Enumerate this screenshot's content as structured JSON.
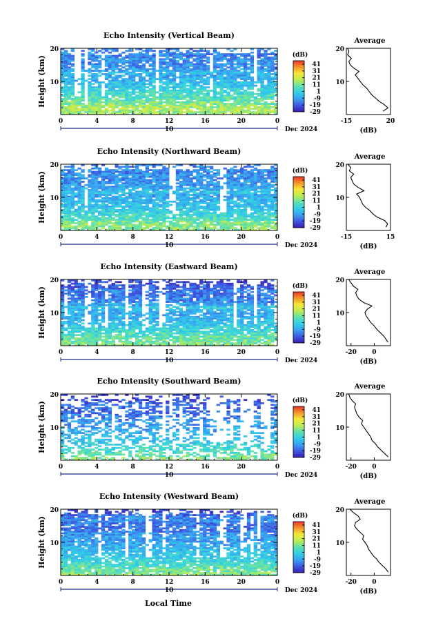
{
  "chart_data": [
    {
      "type": "heatmap",
      "title": "Echo Intensity (Vertical Beam)",
      "xlabel": "Local Time",
      "ylabel": "Height (km)",
      "x_ticks": [
        "0",
        "4",
        "8",
        "12",
        "16",
        "20",
        "0"
      ],
      "date_ticks": [
        "10"
      ],
      "date_label": "Dec 2024",
      "y_ticks": [
        "20",
        "10"
      ],
      "colorbar": {
        "unit": "(dB)",
        "ticks": [
          "41",
          "31",
          "21",
          "11",
          "1",
          "-9",
          "-19",
          "-29"
        ],
        "range": [
          -29,
          46
        ]
      },
      "profile": {
        "title": "Average",
        "xlabel": "(dB)",
        "x_ticks": [
          "-15",
          "20"
        ],
        "xlim": [
          -15,
          20
        ],
        "y_ticks": [
          "20",
          "10"
        ],
        "height": [
          1,
          2,
          3,
          4,
          5,
          6,
          7,
          8,
          9,
          10,
          11,
          12,
          13,
          14,
          15,
          16,
          17,
          18,
          19,
          20
        ],
        "value": [
          14,
          18,
          15,
          11,
          8,
          5,
          3,
          1,
          -2,
          -4,
          -6,
          -8,
          -5,
          -9,
          -12,
          -13,
          -11,
          -14,
          -13,
          -14
        ]
      }
    },
    {
      "type": "heatmap",
      "title": "Echo Intensity (Northward Beam)",
      "xlabel": "Local Time",
      "ylabel": "Height (km)",
      "x_ticks": [
        "0",
        "4",
        "8",
        "12",
        "16",
        "20",
        "0"
      ],
      "date_ticks": [
        "10"
      ],
      "date_label": "Dec 2024",
      "y_ticks": [
        "20",
        "10"
      ],
      "colorbar": {
        "unit": "(dB)",
        "ticks": [
          "41",
          "31",
          "21",
          "11",
          "1",
          "-9",
          "-19",
          "-29"
        ],
        "range": [
          -29,
          46
        ]
      },
      "profile": {
        "title": "Average",
        "xlabel": "(dB)",
        "x_ticks": [
          "-15",
          "15"
        ],
        "xlim": [
          -15,
          15
        ],
        "y_ticks": [
          "20",
          "10"
        ],
        "height": [
          1,
          2,
          3,
          4,
          5,
          6,
          7,
          8,
          9,
          10,
          11,
          12,
          13,
          14,
          15,
          16,
          17,
          18,
          19,
          20
        ],
        "value": [
          12,
          13,
          11,
          6,
          3,
          1,
          -2,
          -4,
          -5,
          -6,
          -8,
          -3,
          -7,
          -10,
          -11,
          -12,
          -10,
          -13,
          -12,
          -14
        ]
      }
    },
    {
      "type": "heatmap",
      "title": "Echo Intensity (Eastward Beam)",
      "xlabel": "Local Time",
      "ylabel": "Height (km)",
      "x_ticks": [
        "0",
        "4",
        "8",
        "12",
        "16",
        "20",
        "0"
      ],
      "date_ticks": [
        "10"
      ],
      "date_label": "Dec 2024",
      "y_ticks": [
        "20",
        "10"
      ],
      "colorbar": {
        "unit": "(dB)",
        "ticks": [
          "41",
          "31",
          "21",
          "11",
          "1",
          "-9",
          "-19",
          "-29"
        ],
        "range": [
          -29,
          46
        ]
      },
      "profile": {
        "title": "Average",
        "xlabel": "(dB)",
        "x_ticks": [
          "-20",
          "0"
        ],
        "xlim": [
          -24,
          14
        ],
        "y_ticks": [
          "20",
          "10"
        ],
        "height": [
          1,
          2,
          3,
          4,
          5,
          6,
          7,
          8,
          9,
          10,
          11,
          12,
          13,
          14,
          15,
          16,
          17,
          18,
          19,
          20
        ],
        "value": [
          12,
          10,
          8,
          5,
          2,
          0,
          -3,
          -5,
          -7,
          -8,
          -6,
          -2,
          -9,
          -13,
          -15,
          -16,
          -14,
          -18,
          -20,
          -22
        ]
      }
    },
    {
      "type": "heatmap",
      "title": "Echo Intensity (Southward Beam)",
      "xlabel": "Local Time",
      "ylabel": "Height (km)",
      "x_ticks": [
        "0",
        "4",
        "8",
        "12",
        "16",
        "20",
        "0"
      ],
      "date_ticks": [
        "10"
      ],
      "date_label": "Dec 2024",
      "y_ticks": [
        "20",
        "10"
      ],
      "colorbar": {
        "unit": "(dB)",
        "ticks": [
          "41",
          "31",
          "21",
          "11",
          "1",
          "-9",
          "-19",
          "-29"
        ],
        "range": [
          -29,
          46
        ]
      },
      "profile": {
        "title": "Average",
        "xlabel": "(dB)",
        "x_ticks": [
          "-20",
          "0"
        ],
        "xlim": [
          -24,
          14
        ],
        "y_ticks": [
          "20",
          "10"
        ],
        "height": [
          1,
          2,
          3,
          4,
          5,
          6,
          7,
          8,
          9,
          10,
          11,
          12,
          13,
          14,
          15,
          16,
          17,
          18,
          19,
          20
        ],
        "value": [
          12,
          9,
          6,
          3,
          1,
          -2,
          -3,
          -5,
          -7,
          -9,
          -11,
          -10,
          -13,
          -15,
          -16,
          -17,
          -16,
          -19,
          -21,
          -22
        ]
      }
    },
    {
      "type": "heatmap",
      "title": "Echo Intensity (Westward Beam)",
      "xlabel": "Local Time",
      "ylabel": "Height (km)",
      "x_ticks": [
        "0",
        "4",
        "8",
        "12",
        "16",
        "20",
        "0"
      ],
      "date_ticks": [
        "10"
      ],
      "date_label": "Dec 2024",
      "y_ticks": [
        "20",
        "10"
      ],
      "colorbar": {
        "unit": "(dB)",
        "ticks": [
          "41",
          "31",
          "21",
          "11",
          "1",
          "-9",
          "-19",
          "-29"
        ],
        "range": [
          -29,
          46
        ]
      },
      "profile": {
        "title": "Average",
        "xlabel": "(dB)",
        "x_ticks": [
          "-20",
          "0"
        ],
        "xlim": [
          -24,
          14
        ],
        "y_ticks": [
          "20",
          "10"
        ],
        "height": [
          1,
          2,
          3,
          4,
          5,
          6,
          7,
          8,
          9,
          10,
          11,
          12,
          13,
          14,
          15,
          16,
          17,
          18,
          19,
          20
        ],
        "value": [
          12,
          10,
          7,
          4,
          2,
          -1,
          -3,
          -5,
          -6,
          -8,
          -10,
          -9,
          -12,
          -15,
          -17,
          -16,
          -12,
          -14,
          -18,
          -21
        ]
      }
    }
  ],
  "footer": {
    "xlabel": "Local Time"
  }
}
